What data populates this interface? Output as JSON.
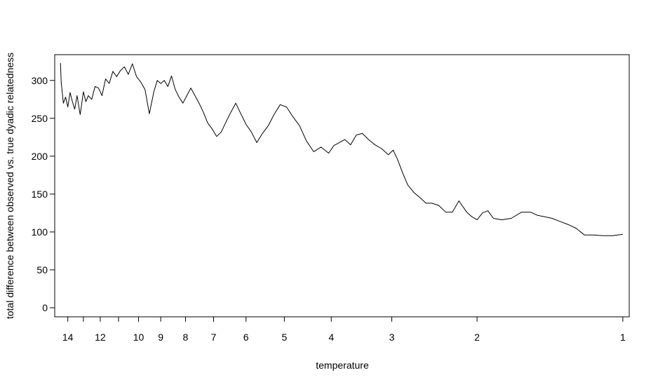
{
  "chart_data": {
    "type": "line",
    "title": "",
    "xlabel": "temperature",
    "ylabel": "total difference between observed vs. true dyadic relatedness",
    "x_scale": "log-reversed",
    "xlim": [
      14.9,
      0.97
    ],
    "ylim": [
      -12,
      334
    ],
    "grid": false,
    "legend": "none",
    "x_ticks": [
      14,
      13,
      12,
      11,
      10,
      9,
      8,
      7,
      6,
      5,
      4,
      3,
      2,
      1
    ],
    "x_tick_labels": [
      "14",
      "",
      "12",
      "",
      "10",
      "9",
      "8",
      "7",
      "6",
      "5",
      "4",
      "3",
      "2",
      "1"
    ],
    "y_ticks": [
      0,
      50,
      100,
      150,
      200,
      250,
      300
    ],
    "y_tick_labels": [
      "0",
      "50",
      "100",
      "150",
      "200",
      "250",
      "300"
    ],
    "line_color": "#000000",
    "series": [
      {
        "x": [
          14.5,
          14.45,
          14.3,
          14.15,
          14.0,
          13.85,
          13.7,
          13.55,
          13.4,
          13.2,
          13.0,
          12.85,
          12.7,
          12.5,
          12.3,
          12.1,
          11.9,
          11.7,
          11.5,
          11.3,
          11.1,
          10.9,
          10.7,
          10.5,
          10.3,
          10.1,
          9.9,
          9.7,
          9.5,
          9.3,
          9.15,
          9.0,
          8.85,
          8.7,
          8.55,
          8.4,
          8.25,
          8.1,
          7.95,
          7.8,
          7.65,
          7.5,
          7.35,
          7.2,
          7.05,
          6.9,
          6.75,
          6.6,
          6.45,
          6.3,
          6.15,
          6.0,
          5.85,
          5.7,
          5.55,
          5.4,
          5.25,
          5.1,
          4.95,
          4.8,
          4.65,
          4.5,
          4.35,
          4.2,
          4.05,
          3.95,
          3.85,
          3.75,
          3.65,
          3.55,
          3.45,
          3.35,
          3.25,
          3.15,
          3.05,
          2.98,
          2.92,
          2.85,
          2.78,
          2.7,
          2.62,
          2.55,
          2.48,
          2.4,
          2.32,
          2.25,
          2.18,
          2.1,
          2.05,
          2.0,
          1.95,
          1.9,
          1.85,
          1.78,
          1.7,
          1.62,
          1.55,
          1.5,
          1.45,
          1.4,
          1.35,
          1.3,
          1.25,
          1.2,
          1.15,
          1.1,
          1.05,
          1.0
        ],
        "y": [
          323,
          298,
          270,
          278,
          265,
          284,
          272,
          262,
          280,
          255,
          285,
          272,
          280,
          275,
          292,
          290,
          280,
          302,
          296,
          312,
          305,
          313,
          318,
          308,
          322,
          305,
          298,
          288,
          256,
          285,
          300,
          296,
          300,
          292,
          306,
          288,
          278,
          270,
          280,
          290,
          280,
          270,
          258,
          244,
          236,
          226,
          232,
          245,
          258,
          270,
          256,
          242,
          232,
          218,
          230,
          240,
          255,
          268,
          265,
          252,
          240,
          220,
          206,
          212,
          204,
          214,
          218,
          222,
          215,
          228,
          230,
          222,
          215,
          210,
          202,
          208,
          196,
          178,
          162,
          152,
          145,
          138,
          138,
          135,
          126,
          126,
          141,
          126,
          120,
          116,
          125,
          128,
          118,
          116,
          118,
          126,
          126,
          122,
          120,
          118,
          114,
          110,
          105,
          96,
          96,
          95,
          95,
          97
        ]
      }
    ]
  }
}
